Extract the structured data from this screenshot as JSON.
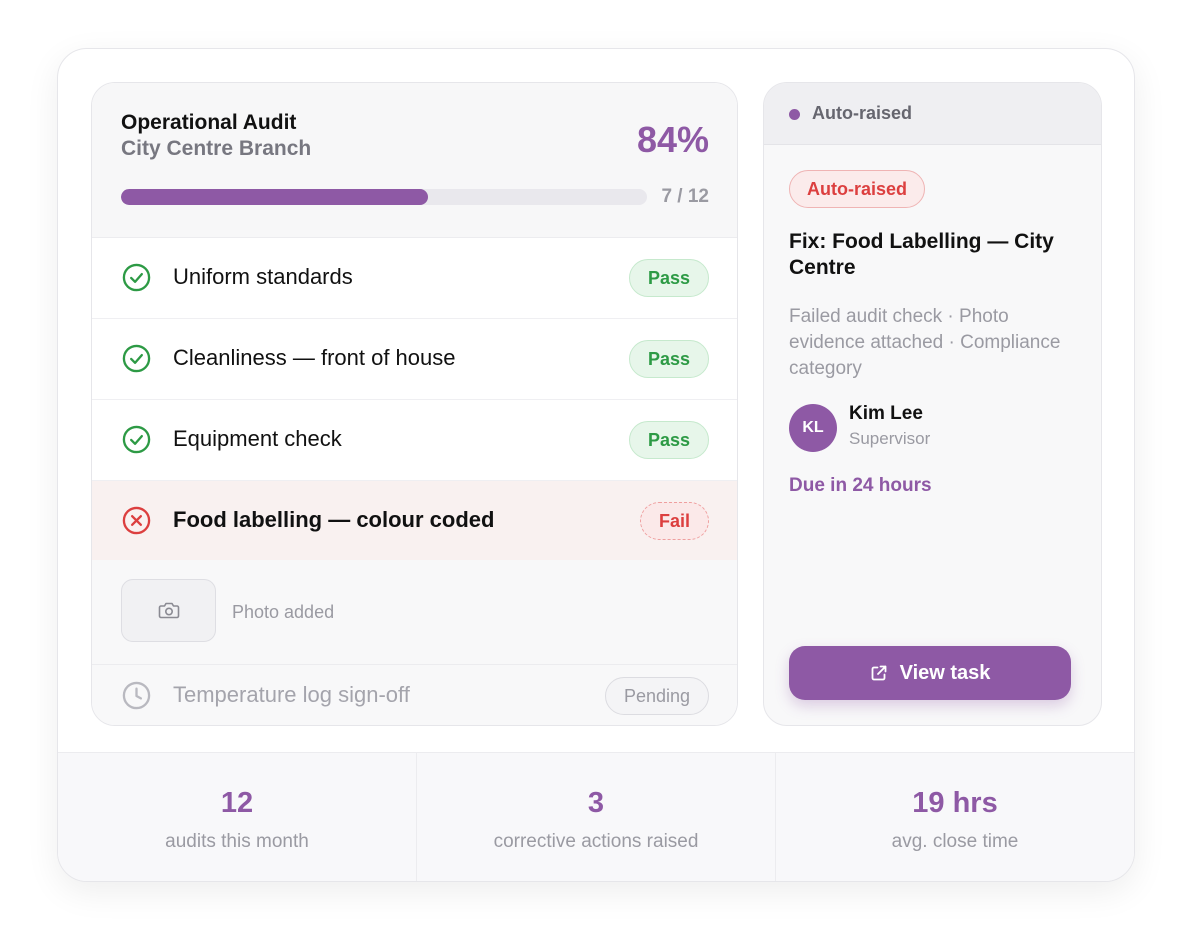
{
  "audit": {
    "title": "Operational Audit",
    "branch": "City Centre Branch",
    "score": "84%",
    "progress": {
      "done": 7,
      "total": 12,
      "label": "7 / 12"
    },
    "items": [
      {
        "label": "Uniform standards",
        "status": "Pass",
        "icon": "check-circle-icon"
      },
      {
        "label": "Cleanliness — front of house",
        "status": "Pass",
        "icon": "check-circle-icon"
      },
      {
        "label": "Equipment check",
        "status": "Pass",
        "icon": "check-circle-icon"
      },
      {
        "label": "Food labelling — colour coded",
        "status": "Fail",
        "icon": "x-circle-icon"
      }
    ],
    "photo": {
      "label": "Photo added",
      "icon": "camera-icon"
    },
    "pending_item": {
      "label": "Temperature log sign-off",
      "status": "Pending",
      "icon": "clock-icon"
    }
  },
  "task": {
    "header_label": "Auto-raised",
    "pill": "Auto-raised",
    "title": "Fix: Food Labelling — City Centre",
    "description": "Failed audit check · Photo evidence attached · Compliance category",
    "assignee": {
      "initials": "KL",
      "name": "Kim Lee",
      "role": "Supervisor"
    },
    "due": "Due in 24 hours",
    "button_label": "View task",
    "button_icon": "external-link-icon"
  },
  "stats": [
    {
      "value": "12",
      "label": "audits this month"
    },
    {
      "value": "3",
      "label": "corrective actions raised"
    },
    {
      "value": "19 hrs",
      "label": "avg. close time"
    }
  ],
  "colors": {
    "accent": "#8e59a5",
    "pass": "#2d9a45",
    "fail": "#dc3f3f",
    "muted": "#9a9aa2"
  }
}
